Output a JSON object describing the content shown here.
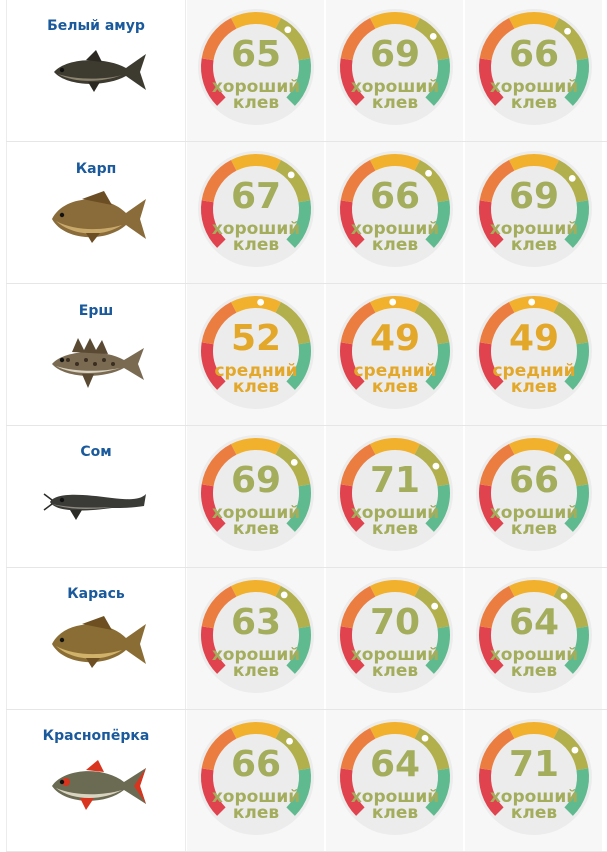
{
  "colors": {
    "good": "#a3ad5b",
    "medium": "#e3a82a",
    "fish_name": "#1a5a9c",
    "arc": [
      "#e0434e",
      "#ec7d41",
      "#f2b12d",
      "#b2b04d",
      "#5fba8f"
    ]
  },
  "rows": [
    {
      "fish": "Белый амур",
      "icon": "grass-carp-icon",
      "scores": [
        {
          "value": "65",
          "line1": "хороший",
          "line2": "клев",
          "level": "good",
          "pointer": 0.65
        },
        {
          "value": "69",
          "line1": "хороший",
          "line2": "клев",
          "level": "good",
          "pointer": 0.69
        },
        {
          "value": "66",
          "line1": "хороший",
          "line2": "клев",
          "level": "good",
          "pointer": 0.66
        }
      ]
    },
    {
      "fish": "Карп",
      "icon": "carp-icon",
      "scores": [
        {
          "value": "67",
          "line1": "хороший",
          "line2": "клев",
          "level": "good",
          "pointer": 0.67
        },
        {
          "value": "66",
          "line1": "хороший",
          "line2": "клев",
          "level": "good",
          "pointer": 0.66
        },
        {
          "value": "69",
          "line1": "хороший",
          "line2": "клев",
          "level": "good",
          "pointer": 0.69
        }
      ]
    },
    {
      "fish": "Ерш",
      "icon": "ruffe-icon",
      "scores": [
        {
          "value": "52",
          "line1": "средний",
          "line2": "клев",
          "level": "medium",
          "pointer": 0.52
        },
        {
          "value": "49",
          "line1": "средний",
          "line2": "клев",
          "level": "medium",
          "pointer": 0.49
        },
        {
          "value": "49",
          "line1": "средний",
          "line2": "клев",
          "level": "medium",
          "pointer": 0.49
        }
      ]
    },
    {
      "fish": "Сом",
      "icon": "catfish-icon",
      "scores": [
        {
          "value": "69",
          "line1": "хороший",
          "line2": "клев",
          "level": "good",
          "pointer": 0.69
        },
        {
          "value": "71",
          "line1": "хороший",
          "line2": "клев",
          "level": "good",
          "pointer": 0.71
        },
        {
          "value": "66",
          "line1": "хороший",
          "line2": "клев",
          "level": "good",
          "pointer": 0.66
        }
      ]
    },
    {
      "fish": "Карась",
      "icon": "crucian-carp-icon",
      "scores": [
        {
          "value": "63",
          "line1": "хороший",
          "line2": "клев",
          "level": "good",
          "pointer": 0.63
        },
        {
          "value": "70",
          "line1": "хороший",
          "line2": "клев",
          "level": "good",
          "pointer": 0.7
        },
        {
          "value": "64",
          "line1": "хороший",
          "line2": "клев",
          "level": "good",
          "pointer": 0.64
        }
      ]
    },
    {
      "fish": "Краснопёрка",
      "icon": "rudd-icon",
      "scores": [
        {
          "value": "66",
          "line1": "хороший",
          "line2": "клев",
          "level": "good",
          "pointer": 0.66
        },
        {
          "value": "64",
          "line1": "хороший",
          "line2": "клев",
          "level": "good",
          "pointer": 0.64
        },
        {
          "value": "71",
          "line1": "хороший",
          "line2": "клев",
          "level": "good",
          "pointer": 0.71
        }
      ]
    }
  ]
}
